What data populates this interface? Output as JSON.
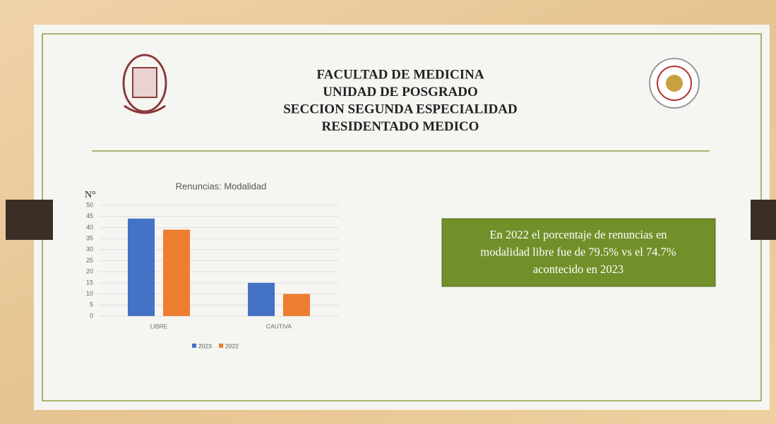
{
  "header": {
    "lines": [
      "FACULTAD DE MEDICINA",
      "UNIDAD DE POSGRADO",
      "SECCION SEGUNDA ESPECIALIDAD",
      "RESIDENTADO MEDICO"
    ]
  },
  "chart_data": {
    "type": "bar",
    "title": "Renuncias: Modalidad",
    "y_label": "N°",
    "categories": [
      "LIBRE",
      "CAUTIVA"
    ],
    "series": [
      {
        "name": "2023",
        "color": "#4472c4",
        "values": [
          44,
          15
        ]
      },
      {
        "name": "2022",
        "color": "#ed7d31",
        "values": [
          39,
          10
        ]
      }
    ],
    "ylim": [
      0,
      50
    ],
    "yticks": [
      0,
      5,
      10,
      15,
      20,
      25,
      30,
      35,
      40,
      45,
      50
    ],
    "grid": true,
    "legend": "bottom"
  },
  "callout": {
    "lines": [
      "En 2022 el porcentaje de renuncias en",
      "modalidad libre fue de 79.5% vs el 74.7%",
      "acontecido en 2023"
    ]
  }
}
